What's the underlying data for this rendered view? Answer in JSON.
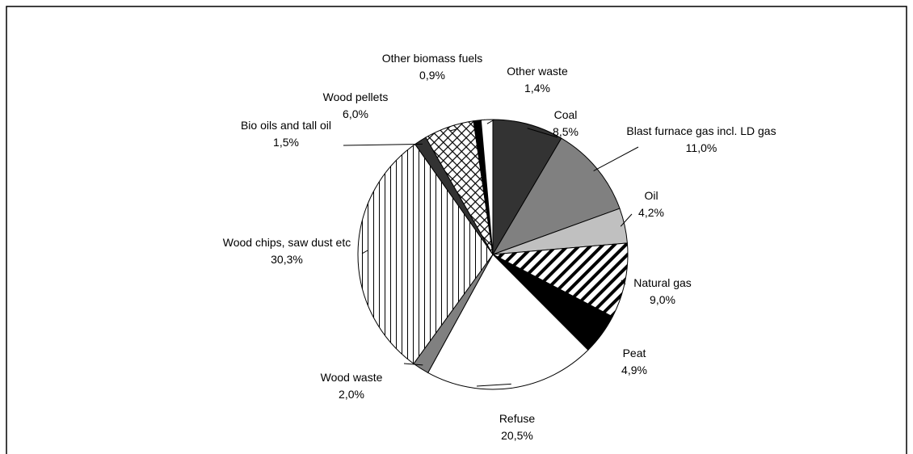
{
  "chart_data": {
    "type": "pie",
    "categories": [
      "Coal",
      "Blast furnace gas incl. LD gas",
      "Oil",
      "Natural gas",
      "Peat",
      "Refuse",
      "Wood waste",
      "Wood chips, saw dust etc",
      "Bio oils and tall oil",
      "Wood pellets",
      "Other biomass fuels",
      "Other waste"
    ],
    "values": [
      8.5,
      11.0,
      4.2,
      9.0,
      4.9,
      20.5,
      2.0,
      30.3,
      1.5,
      6.0,
      0.9,
      1.4
    ],
    "value_labels": [
      "8,5%",
      "11,0%",
      "4,2%",
      "9,0%",
      "4,9%",
      "20,5%",
      "2,0%",
      "30,3%",
      "1,5%",
      "6,0%",
      "0,9%",
      "1,4%"
    ],
    "colors": [
      "#333333",
      "#808080",
      "#c0c0c0",
      "url(#diag)",
      "#000000",
      "#ffffff",
      "#808080",
      "url(#vert)",
      "#333333",
      "url(#cross)",
      "#000000",
      "#ffffff"
    ]
  }
}
